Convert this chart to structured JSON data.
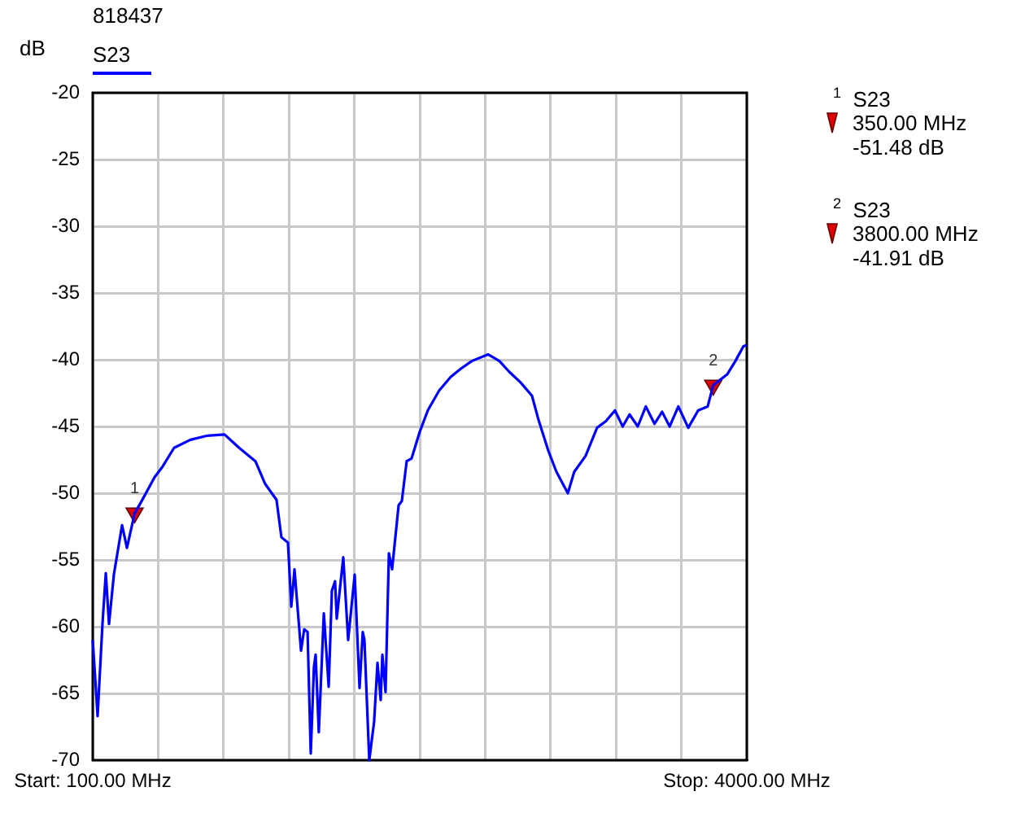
{
  "chart_data": {
    "type": "line",
    "title": "818437",
    "ylabel": "dB",
    "xlim": [
      100,
      4000
    ],
    "ylim": [
      -70,
      -20
    ],
    "xticks": [
      {
        "value": 100,
        "label": "Start: 100.00 MHz"
      },
      {
        "value": 490,
        "label": null
      },
      {
        "value": 880,
        "label": null
      },
      {
        "value": 1270,
        "label": null
      },
      {
        "value": 1660,
        "label": null
      },
      {
        "value": 2050,
        "label": null
      },
      {
        "value": 2440,
        "label": null
      },
      {
        "value": 2830,
        "label": null
      },
      {
        "value": 3220,
        "label": null
      },
      {
        "value": 3610,
        "label": null
      },
      {
        "value": 4000,
        "label": "Stop: 4000.00 MHz"
      }
    ],
    "yticks": [
      -70,
      -65,
      -60,
      -55,
      -50,
      -45,
      -40,
      -35,
      -30,
      -25,
      -20
    ],
    "grid": true,
    "legend": "top left",
    "marker": "none",
    "line_style": "solid",
    "x": [
      100,
      129,
      158,
      178,
      197,
      226,
      275,
      304,
      350,
      391,
      469,
      517,
      585,
      682,
      779,
      886,
      973,
      1070,
      1128,
      1196,
      1225,
      1264,
      1284,
      1303,
      1342,
      1361,
      1381,
      1400,
      1419,
      1429,
      1448,
      1478,
      1507,
      1526,
      1545,
      1555,
      1594,
      1623,
      1662,
      1691,
      1710,
      1720,
      1749,
      1778,
      1798,
      1817,
      1827,
      1846,
      1866,
      1885,
      1924,
      1943,
      1972,
      2001,
      2050,
      2098,
      2166,
      2234,
      2292,
      2360,
      2457,
      2525,
      2583,
      2651,
      2719,
      2758,
      2816,
      2865,
      2933,
      2971,
      3039,
      3107,
      3160,
      3214,
      3260,
      3301,
      3350,
      3398,
      3450,
      3495,
      3540,
      3592,
      3651,
      3710,
      3767,
      3800,
      3883,
      3932,
      3980,
      4000
    ],
    "series": [
      {
        "name": "S23",
        "color": "#0000ff",
        "values": [
          -61.0,
          -66.7,
          -59.8,
          -56.0,
          -59.8,
          -56.1,
          -52.4,
          -54.1,
          -51.5,
          -50.6,
          -48.8,
          -48.0,
          -46.6,
          -46.0,
          -45.7,
          -45.6,
          -46.6,
          -47.6,
          -49.3,
          -50.5,
          -53.3,
          -53.7,
          -58.5,
          -55.7,
          -61.8,
          -60.2,
          -60.4,
          -69.5,
          -63.0,
          -62.1,
          -67.9,
          -59.0,
          -64.5,
          -57.3,
          -56.6,
          -59.4,
          -54.8,
          -61.0,
          -56.1,
          -64.6,
          -60.4,
          -61.0,
          -70.0,
          -67.1,
          -62.7,
          -65.5,
          -62.1,
          -64.9,
          -54.5,
          -55.7,
          -50.9,
          -50.6,
          -47.6,
          -47.4,
          -45.4,
          -43.8,
          -42.3,
          -41.3,
          -40.7,
          -40.1,
          -39.6,
          -40.1,
          -40.9,
          -41.7,
          -42.7,
          -44.5,
          -46.8,
          -48.4,
          -50.0,
          -48.4,
          -47.2,
          -45.1,
          -44.6,
          -43.8,
          -45.0,
          -44.1,
          -45.0,
          -43.5,
          -44.8,
          -43.9,
          -45.0,
          -43.5,
          -45.1,
          -43.8,
          -43.5,
          -41.9,
          -41.1,
          -40.1,
          -39.0,
          -38.9
        ]
      },
      {
        "type": "scatter",
        "color": "#e00000",
        "marker": "triangle",
        "x": [
          350,
          3800
        ],
        "values": [
          -51.48,
          -41.91
        ]
      }
    ],
    "annotations": [
      {
        "text": "1",
        "x": 350,
        "y": -51.48
      },
      {
        "text": "2",
        "x": 3800,
        "y": -41.91
      },
      "1",
      "S23",
      "350.00 MHz",
      "-51.48 dB",
      "2",
      "S23",
      "3800.00 MHz",
      "-41.91 dB"
    ]
  }
}
